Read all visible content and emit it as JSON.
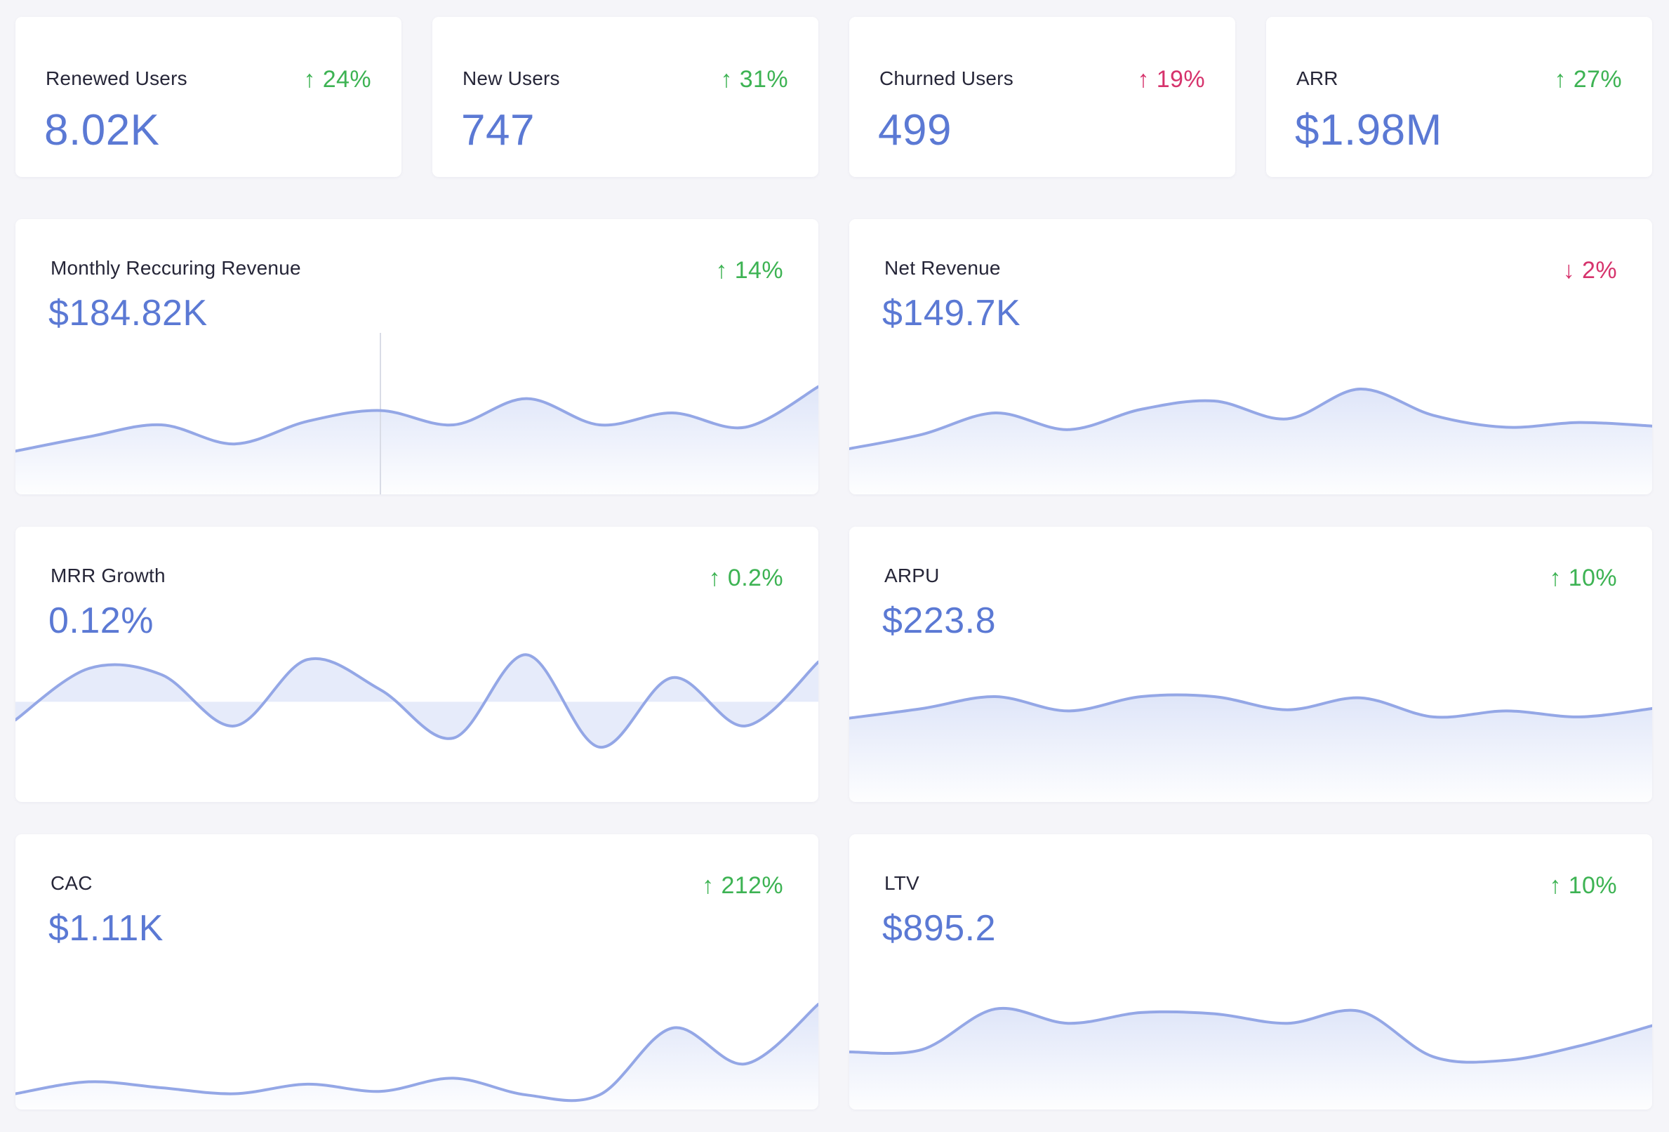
{
  "colors": {
    "accent": "#5b79d4",
    "line": "#94a7e6",
    "fill": "#dde4f8",
    "positive": "#3db353",
    "negative": "#d6336c"
  },
  "stats": [
    {
      "label": "Renewed Users",
      "value": "8.02K",
      "delta": "24%",
      "direction": "up",
      "trend_color": "positive"
    },
    {
      "label": "New Users",
      "value": "747",
      "delta": "31%",
      "direction": "up",
      "trend_color": "positive"
    },
    {
      "label": "Churned Users",
      "value": "499",
      "delta": "19%",
      "direction": "up",
      "trend_color": "negative"
    },
    {
      "label": "ARR",
      "value": "$1.98M",
      "delta": "27%",
      "direction": "up",
      "trend_color": "positive"
    }
  ],
  "charts": [
    {
      "label": "Monthly Reccuring Revenue",
      "value": "$184.82K",
      "delta": "14%",
      "direction": "up",
      "trend_color": "positive"
    },
    {
      "label": "Net Revenue",
      "value": "$149.7K",
      "delta": "2%",
      "direction": "down",
      "trend_color": "negative"
    },
    {
      "label": "MRR Growth",
      "value": "0.12%",
      "delta": "0.2%",
      "direction": "up",
      "trend_color": "positive"
    },
    {
      "label": "ARPU",
      "value": "$223.8",
      "delta": "10%",
      "direction": "up",
      "trend_color": "positive"
    },
    {
      "label": "CAC",
      "value": "$1.11K",
      "delta": "212%",
      "direction": "up",
      "trend_color": "positive"
    },
    {
      "label": "LTV",
      "value": "$895.2",
      "delta": "10%",
      "direction": "up",
      "trend_color": "positive"
    }
  ],
  "chart_data": [
    {
      "type": "area",
      "series": [
        {
          "values": [
            0.28,
            0.4,
            0.5,
            0.34,
            0.53,
            0.62,
            0.5,
            0.72,
            0.5,
            0.6,
            0.48,
            0.82
          ]
        }
      ]
    },
    {
      "type": "area",
      "series": [
        {
          "values": [
            0.3,
            0.42,
            0.6,
            0.46,
            0.63,
            0.7,
            0.55,
            0.8,
            0.58,
            0.48,
            0.52,
            0.49
          ]
        }
      ]
    },
    {
      "type": "area",
      "series": [
        {
          "values": [
            -0.3,
            0.55,
            0.45,
            -0.4,
            0.7,
            0.2,
            -0.6,
            0.78,
            -0.75,
            0.4,
            -0.4,
            0.66
          ]
        }
      ]
    },
    {
      "type": "area",
      "series": [
        {
          "values": [
            0.62,
            0.7,
            0.8,
            0.68,
            0.8,
            0.8,
            0.69,
            0.79,
            0.63,
            0.68,
            0.63,
            0.7
          ]
        }
      ]
    },
    {
      "type": "area",
      "series": [
        {
          "values": [
            0.05,
            0.15,
            0.1,
            0.05,
            0.13,
            0.07,
            0.18,
            0.04,
            0.04,
            0.6,
            0.3,
            0.8
          ]
        }
      ]
    },
    {
      "type": "area",
      "series": [
        {
          "values": [
            0.4,
            0.42,
            0.76,
            0.64,
            0.73,
            0.72,
            0.64,
            0.74,
            0.36,
            0.33,
            0.45,
            0.62
          ]
        }
      ]
    }
  ]
}
